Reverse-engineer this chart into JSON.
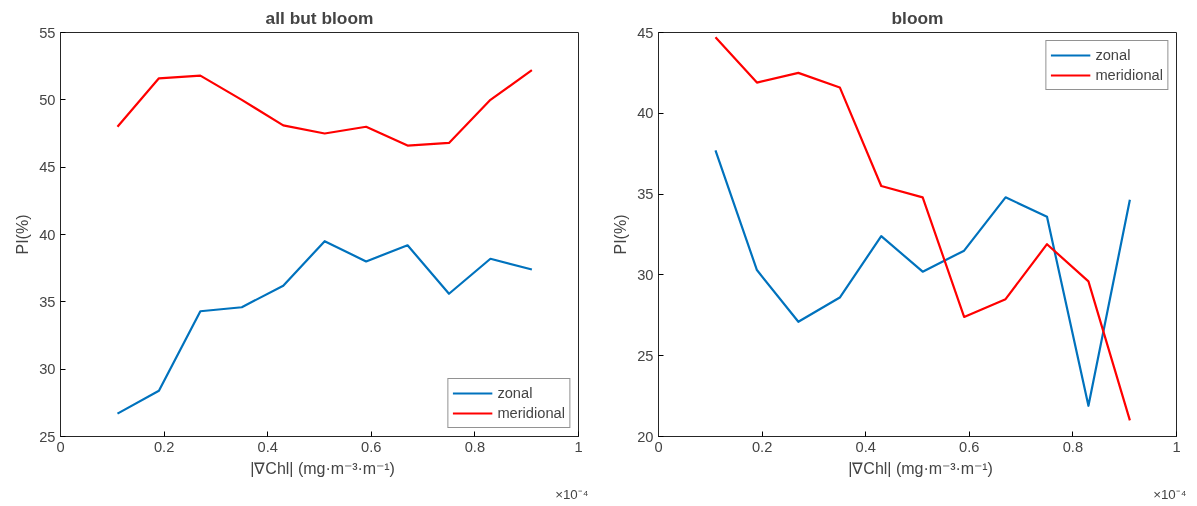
{
  "chart_data": [
    {
      "type": "line",
      "title": "all but bloom",
      "xlabel": "|∇Chl| (mg·m⁻³·m⁻¹)",
      "ylabel": "PI(%)",
      "annotations": [
        "×10⁻⁴"
      ],
      "x": [
        0.11,
        0.19,
        0.27,
        0.35,
        0.43,
        0.51,
        0.59,
        0.67,
        0.75,
        0.83,
        0.91
      ],
      "series": [
        {
          "name": "zonal",
          "color": "#0072bd",
          "values": [
            26.7,
            28.4,
            34.3,
            34.6,
            36.2,
            39.5,
            38.0,
            39.2,
            35.6,
            38.2,
            37.4
          ]
        },
        {
          "name": "meridional",
          "color": "#ff0000",
          "values": [
            48.0,
            51.6,
            51.8,
            50.0,
            48.1,
            47.5,
            48.0,
            46.6,
            46.8,
            50.0,
            52.2
          ]
        }
      ],
      "xlim": [
        0,
        1
      ],
      "xticks": [
        0,
        0.2,
        0.4,
        0.6,
        0.8,
        1
      ],
      "ylim": [
        25,
        55
      ],
      "yticks": [
        25,
        30,
        35,
        40,
        45,
        50,
        55
      ],
      "grid": false,
      "legend": "bottom right",
      "marker": "none",
      "line_style": "solid"
    },
    {
      "type": "line",
      "title": "bloom",
      "xlabel": "|∇Chl| (mg·m⁻³·m⁻¹)",
      "ylabel": "PI(%)",
      "annotations": [
        "×10⁻⁴"
      ],
      "x": [
        0.11,
        0.19,
        0.27,
        0.35,
        0.43,
        0.51,
        0.59,
        0.67,
        0.75,
        0.83,
        0.91
      ],
      "series": [
        {
          "name": "zonal",
          "color": "#0072bd",
          "values": [
            37.7,
            30.3,
            27.1,
            28.6,
            32.4,
            30.2,
            31.5,
            34.8,
            33.6,
            21.9,
            34.65
          ]
        },
        {
          "name": "meridional",
          "color": "#ff0000",
          "values": [
            44.7,
            41.9,
            42.5,
            41.6,
            35.5,
            34.8,
            27.4,
            28.5,
            31.9,
            29.6,
            21.0
          ]
        }
      ],
      "xlim": [
        0,
        1
      ],
      "xticks": [
        0,
        0.2,
        0.4,
        0.6,
        0.8,
        1
      ],
      "ylim": [
        20,
        45
      ],
      "yticks": [
        20,
        25,
        30,
        35,
        40,
        45
      ],
      "grid": false,
      "legend": "top right",
      "marker": "none",
      "line_style": "solid"
    }
  ]
}
